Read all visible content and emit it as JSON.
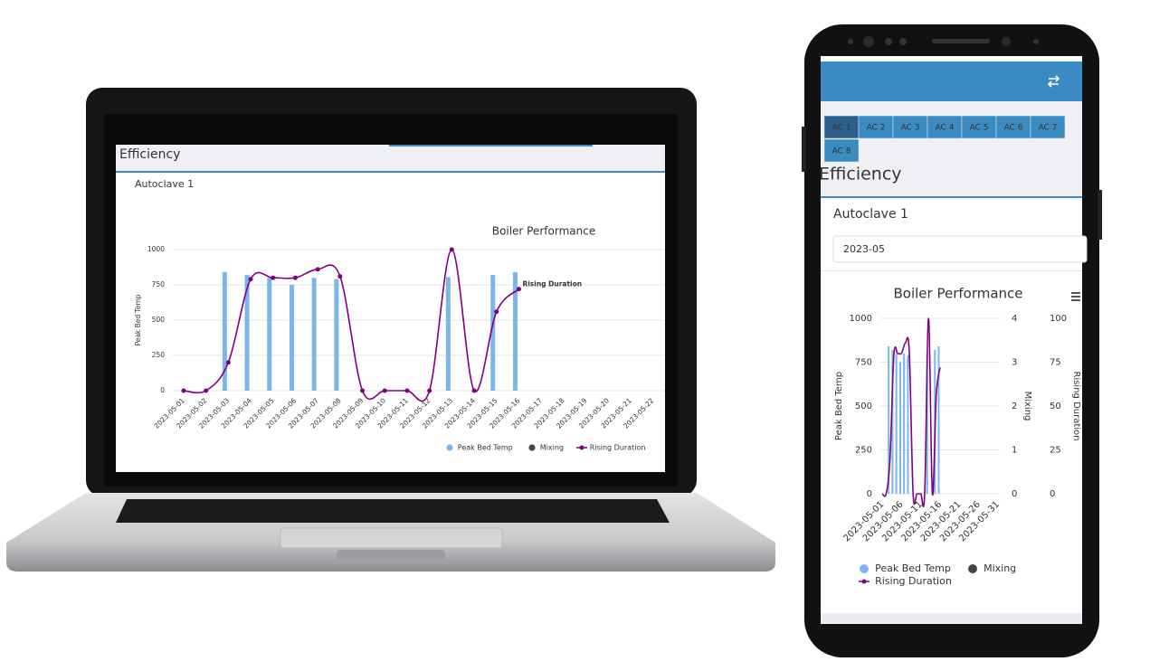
{
  "laptop": {
    "section_title": "Efficiency",
    "panel_title": "Autoclave 1"
  },
  "phone": {
    "tabs": [
      "AC 1",
      "AC 2",
      "AC 3",
      "AC 4",
      "AC 5",
      "AC 6",
      "AC 7",
      "AC 8"
    ],
    "section_title": "Efficiency",
    "panel_title": "Autoclave 1",
    "month": "2023-05"
  },
  "chart_data": [
    {
      "type": "combo",
      "title": "Boiler Performance",
      "ylabel": "Peak Bed Temp",
      "categories": [
        "2023-05-01",
        "2023-05-02",
        "2023-05-03",
        "2023-05-04",
        "2023-05-05",
        "2023-05-06",
        "2023-05-07",
        "2023-05-08",
        "2023-05-09",
        "2023-05-10",
        "2023-05-11",
        "2023-05-12",
        "2023-05-13",
        "2023-05-14",
        "2023-05-15",
        "2023-05-16",
        "2023-05-17",
        "2023-05-18",
        "2023-05-19",
        "2023-05-20",
        "2023-05-21",
        "2023-05-22"
      ],
      "series": [
        {
          "name": "Peak Bed Temp",
          "type": "bar",
          "color": "#7cb5ec",
          "values": [
            null,
            null,
            840,
            820,
            800,
            750,
            800,
            790,
            null,
            null,
            null,
            null,
            805,
            null,
            820,
            840,
            null,
            null,
            null,
            null,
            null,
            null
          ]
        },
        {
          "name": "Mixing",
          "type": "scatter",
          "color": "#434348",
          "axis": "y2",
          "values": [
            null,
            null,
            null,
            null,
            null,
            null,
            null,
            null,
            null,
            null,
            null,
            null,
            null,
            null,
            null,
            null,
            null,
            null,
            null,
            null,
            null,
            null
          ]
        },
        {
          "name": "Rising Duration",
          "type": "line",
          "color": "#800080",
          "axis": "y3",
          "values": [
            0,
            0,
            20,
            79,
            80,
            80,
            86,
            81,
            0,
            0,
            0,
            0,
            100,
            0,
            56,
            72,
            null,
            null,
            null,
            null,
            null,
            null
          ]
        }
      ],
      "ylim": [
        0,
        1000
      ],
      "yticks": [
        0,
        250,
        500,
        750,
        1000
      ],
      "y2lim": [
        0,
        4
      ],
      "y3lim": [
        0,
        100
      ],
      "grid": true
    },
    {
      "type": "combo",
      "title": "Boiler Performance",
      "ylabel": "Peak Bed Temp",
      "y2label": "Mixing",
      "y3label": "Rising Duration",
      "categories": [
        "2023-05-01",
        null,
        null,
        null,
        null,
        "2023-05-06",
        null,
        null,
        null,
        null,
        "2023-05-11",
        null,
        null,
        null,
        null,
        "2023-05-16",
        null,
        null,
        null,
        null,
        "2023-05-21",
        null,
        null,
        null,
        null,
        "2023-05-26",
        null,
        null,
        null,
        null,
        "2023-05-31"
      ],
      "series": [
        {
          "name": "Peak Bed Temp",
          "type": "bar",
          "color": "#7cb5ec",
          "values": [
            null,
            null,
            840,
            820,
            800,
            750,
            800,
            790,
            null,
            null,
            null,
            null,
            805,
            null,
            820,
            840,
            null,
            null,
            null,
            null,
            null,
            null,
            null,
            null,
            null,
            null,
            null,
            null,
            null,
            null,
            null
          ]
        },
        {
          "name": "Mixing",
          "type": "scatter",
          "color": "#434348",
          "axis": "y2",
          "values": [
            null,
            null,
            null,
            null,
            null,
            null,
            null,
            null,
            null,
            null,
            null,
            null,
            null,
            null,
            null,
            null,
            null,
            null,
            null,
            null,
            null,
            null,
            null,
            null,
            null,
            null,
            null,
            null,
            null,
            null,
            null
          ]
        },
        {
          "name": "Rising Duration",
          "type": "line",
          "color": "#800080",
          "axis": "y3",
          "values": [
            0,
            0,
            20,
            79,
            80,
            80,
            86,
            81,
            0,
            0,
            0,
            0,
            100,
            0,
            56,
            72,
            null,
            null,
            null,
            null,
            null,
            null,
            null,
            null,
            null,
            null,
            null,
            null,
            null,
            null,
            null
          ]
        }
      ],
      "ylim": [
        0,
        1000
      ],
      "yticks": [
        0,
        250,
        500,
        750,
        1000
      ],
      "y2lim": [
        0,
        4
      ],
      "y2ticks": [
        0,
        1,
        2,
        3,
        4
      ],
      "y3lim": [
        0,
        100
      ],
      "y3ticks": [
        0,
        25,
        50,
        75,
        100
      ],
      "grid": true
    }
  ]
}
